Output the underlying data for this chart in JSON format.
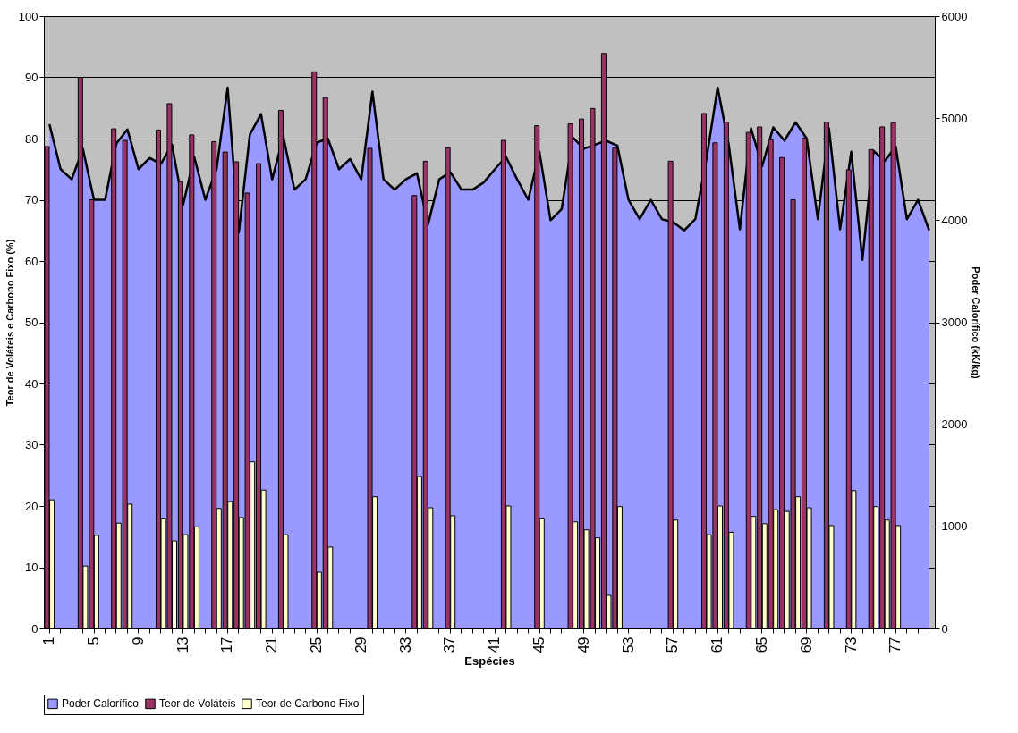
{
  "chart_data": {
    "type": "bar",
    "xlabel": "Espécies",
    "ylabel": "Teor de Voláteis e Carbono Fixo (%)",
    "y2label": "Poder Calorífico (kK/kg)",
    "categories": [
      "1",
      null,
      null,
      null,
      "5",
      null,
      null,
      null,
      "9",
      null,
      null,
      null,
      "13",
      null,
      null,
      null,
      "17",
      null,
      null,
      null,
      "21",
      null,
      null,
      null,
      "25",
      null,
      null,
      null,
      "29",
      null,
      null,
      null,
      "33",
      null,
      null,
      null,
      "37",
      null,
      null,
      null,
      "41",
      null,
      null,
      null,
      "45",
      null,
      null,
      null,
      "49",
      null,
      null,
      null,
      "53",
      null,
      null,
      null,
      "57",
      null,
      null,
      null,
      "61",
      null,
      null,
      null,
      "65",
      null,
      null,
      null,
      "69",
      null,
      null,
      null,
      "73",
      null,
      null,
      null,
      "77",
      null,
      null,
      null
    ],
    "series": [
      {
        "name": "Poder Calorífico",
        "type": "area",
        "axis": "y2",
        "color": "#9999ff",
        "values": [
          4940,
          4500,
          4400,
          4700,
          4200,
          4200,
          4750,
          4890,
          4500,
          4610,
          4550,
          4740,
          4150,
          4620,
          4200,
          4500,
          5300,
          3880,
          4840,
          5040,
          4400,
          4820,
          4300,
          4400,
          4760,
          4800,
          4500,
          4600,
          4400,
          5260,
          4400,
          4300,
          4400,
          4460,
          3960,
          4400,
          4470,
          4300,
          4300,
          4370,
          4500,
          4620,
          4400,
          4200,
          4670,
          4000,
          4110,
          4810,
          4700,
          4740,
          4780,
          4730,
          4200,
          4010,
          4200,
          4010,
          3980,
          3900,
          4010,
          4600,
          5300,
          4740,
          3910,
          4900,
          4530,
          4910,
          4780,
          4960,
          4800,
          4010,
          4900,
          3910,
          4670,
          3610,
          4680,
          4580,
          4720,
          4010,
          4200,
          3900
        ]
      },
      {
        "name": "Teor de Voláteis",
        "color": "#993366",
        "values": [
          78.7,
          null,
          null,
          90.0,
          70.0,
          null,
          81.6,
          79.7,
          null,
          null,
          81.4,
          85.7,
          73.0,
          80.6,
          null,
          79.5,
          77.8,
          76.2,
          71.1,
          75.9,
          null,
          84.6,
          null,
          null,
          90.9,
          86.7,
          null,
          null,
          null,
          78.4,
          null,
          null,
          null,
          70.7,
          76.3,
          null,
          78.5,
          null,
          null,
          null,
          null,
          79.7,
          null,
          null,
          82.1,
          null,
          null,
          82.4,
          83.2,
          84.9,
          93.9,
          78.5,
          null,
          null,
          null,
          null,
          76.3,
          null,
          null,
          84.1,
          79.3,
          82.7,
          null,
          81.0,
          81.9,
          79.8,
          76.9,
          70.0,
          80.1,
          null,
          82.7,
          null,
          74.9,
          null,
          78.2,
          81.9,
          82.6,
          null,
          null,
          null
        ]
      },
      {
        "name": "Teor de Carbono Fixo",
        "color": "#ffffcc",
        "values": [
          21.0,
          null,
          null,
          10.2,
          15.2,
          null,
          17.2,
          20.3,
          null,
          null,
          17.9,
          14.3,
          15.3,
          16.6,
          null,
          19.6,
          20.7,
          18.1,
          27.2,
          22.6,
          null,
          15.3,
          null,
          null,
          9.2,
          13.3,
          null,
          null,
          null,
          21.5,
          null,
          null,
          null,
          24.8,
          19.7,
          null,
          18.4,
          null,
          null,
          null,
          null,
          20.0,
          null,
          null,
          17.9,
          null,
          null,
          17.4,
          16.1,
          14.8,
          5.4,
          19.9,
          null,
          null,
          null,
          null,
          17.7,
          null,
          null,
          15.3,
          20.0,
          15.7,
          null,
          18.3,
          17.1,
          19.4,
          19.1,
          21.5,
          19.7,
          null,
          16.8,
          null,
          22.5,
          null,
          19.9,
          17.7,
          16.8,
          null,
          null,
          null
        ]
      }
    ],
    "ylim": [
      0,
      100
    ],
    "yticks": [
      0,
      10,
      20,
      30,
      40,
      50,
      60,
      70,
      80,
      90,
      100
    ],
    "y2lim": [
      0,
      6000
    ],
    "y2ticks": [
      0,
      1000,
      2000,
      3000,
      4000,
      5000,
      6000
    ],
    "grid": "y",
    "legend": "bottom"
  }
}
